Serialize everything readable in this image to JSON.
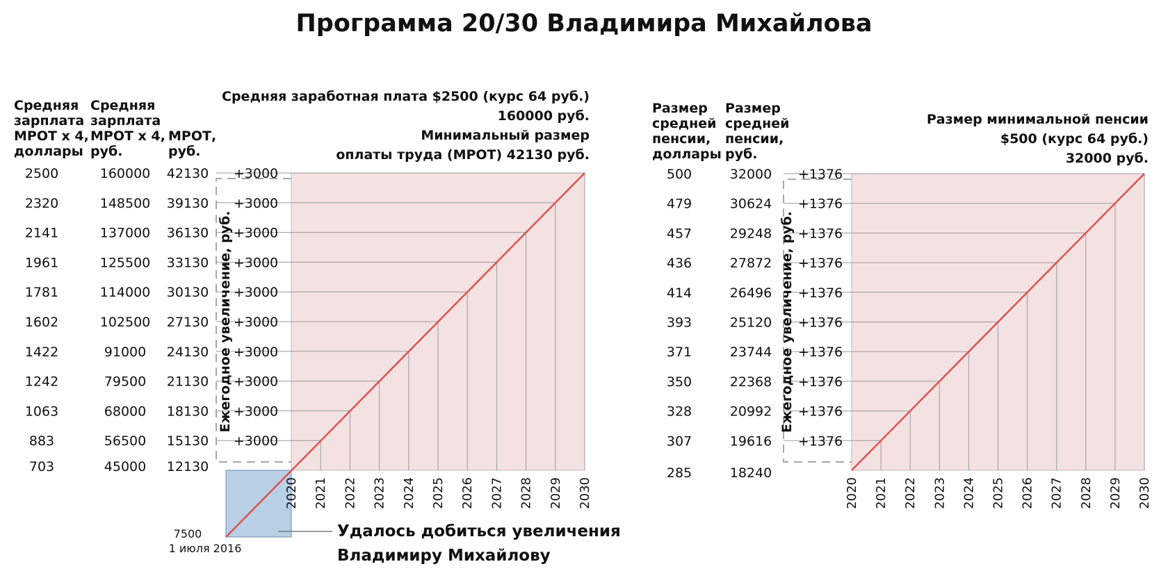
{
  "title": "Программа 20/30 Владимира Михайлова",
  "chart_data": [
    {
      "type": "line",
      "x": [
        2020,
        2021,
        2022,
        2023,
        2024,
        2025,
        2026,
        2027,
        2028,
        2029,
        2030
      ],
      "xlim": [
        2020,
        2030
      ],
      "grid": true,
      "series": [
        {
          "values": [
            12130,
            15130,
            18130,
            21130,
            24130,
            27130,
            30130,
            33130,
            36130,
            39130,
            42130
          ],
          "color": "#d9534f"
        }
      ],
      "table": {
        "headers": [
          "Средняя зарплата МРОТ х 4, доллары",
          "Средняя зарплата МРОТ х 4, руб.",
          "МРОТ, руб."
        ],
        "usd": [
          "2500",
          "2320",
          "2141",
          "1961",
          "1781",
          "1602",
          "1422",
          "1242",
          "1063",
          "883",
          "703"
        ],
        "rub": [
          "160000",
          "148500",
          "137000",
          "125500",
          "114000",
          "102500",
          "91000",
          "79500",
          "68000",
          "56500",
          "45000"
        ],
        "mrot": [
          "42130",
          "39130",
          "36130",
          "33130",
          "30130",
          "27130",
          "24130",
          "21130",
          "18130",
          "15130",
          "12130"
        ]
      },
      "increase_label": "Ежегодное увеличение, руб.",
      "increase": [
        "+3000",
        "+3000",
        "+3000",
        "+3000",
        "+3000",
        "+3000",
        "+3000",
        "+3000",
        "+3000",
        "+3000"
      ],
      "annotation_lines": [
        "Средняя заработная плата $2500 (курс 64 руб.)",
        "160000 руб.",
        "Минимальный размер",
        "оплаты труда (МРОТ) 42130 руб."
      ],
      "start_value": "7500",
      "start_date": "1 июля 2016",
      "achieved_lines": [
        "Удалось добиться увеличения",
        "Владимиру Михайлову"
      ],
      "colors": {
        "area": "#f4e1e1",
        "line": "#d9534f",
        "achieved": "#b8cfe6",
        "grid": "#9a9a9a"
      }
    },
    {
      "type": "line",
      "x": [
        2020,
        2021,
        2022,
        2023,
        2024,
        2025,
        2026,
        2027,
        2028,
        2029,
        2030
      ],
      "xlim": [
        2020,
        2030
      ],
      "grid": true,
      "series": [
        {
          "values": [
            18240,
            19616,
            20992,
            22368,
            23744,
            25120,
            26496,
            27872,
            29248,
            30624,
            32000
          ],
          "color": "#d9534f"
        }
      ],
      "table": {
        "headers": [
          "Размер средней пенсии, доллары",
          "Размер средней пенсии, руб."
        ],
        "usd": [
          "500",
          "479",
          "457",
          "436",
          "414",
          "393",
          "371",
          "350",
          "328",
          "307",
          "285"
        ],
        "rub": [
          "32000",
          "30624",
          "29248",
          "27872",
          "26496",
          "25120",
          "23744",
          "22368",
          "20992",
          "19616",
          "18240"
        ]
      },
      "increase_label": "Ежегодное увеличение, руб.",
      "increase": [
        "+1376",
        "+1376",
        "+1376",
        "+1376",
        "+1376",
        "+1376",
        "+1376",
        "+1376",
        "+1376",
        "+1376"
      ],
      "annotation_lines": [
        "Размер минимальной пенсии",
        "$500 (курс 64 руб.)",
        "32000 руб."
      ],
      "colors": {
        "area": "#f4e1e1",
        "line": "#d9534f",
        "grid": "#9a9a9a"
      }
    }
  ]
}
